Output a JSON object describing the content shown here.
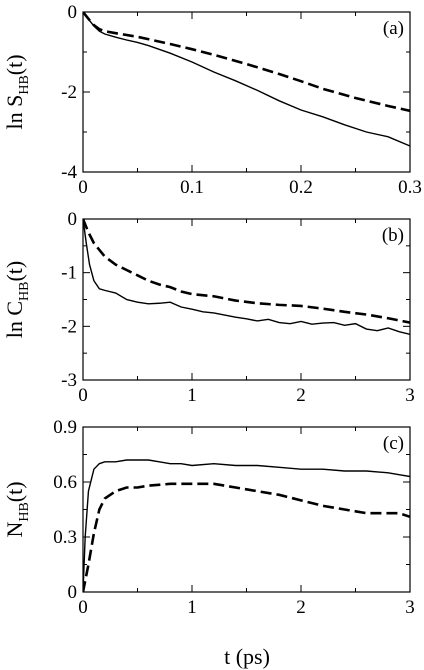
{
  "xlabel": "t (ps)",
  "chart_data": [
    {
      "type": "line",
      "panel_label": "(a)",
      "ylabel_main": "ln S",
      "ylabel_sub": "HB",
      "ylabel_tail": "(t)",
      "xlim": [
        0,
        0.3
      ],
      "ylim": [
        -4,
        0
      ],
      "xticks": [
        0,
        0.1,
        0.2,
        0.3
      ],
      "xtick_labels": [
        "0",
        "0.1",
        "0.2",
        "0.3"
      ],
      "yticks": [
        -4,
        -2,
        0
      ],
      "ytick_labels": [
        "-4",
        "-2",
        "0"
      ],
      "series": [
        {
          "style": "solid",
          "x": [
            0,
            0.005,
            0.01,
            0.015,
            0.02,
            0.03,
            0.04,
            0.05,
            0.06,
            0.08,
            0.1,
            0.12,
            0.14,
            0.16,
            0.18,
            0.2,
            0.22,
            0.24,
            0.26,
            0.28,
            0.3
          ],
          "y": [
            0,
            -0.18,
            -0.35,
            -0.48,
            -0.55,
            -0.63,
            -0.7,
            -0.76,
            -0.84,
            -1.03,
            -1.25,
            -1.5,
            -1.72,
            -1.96,
            -2.22,
            -2.45,
            -2.62,
            -2.82,
            -3.0,
            -3.12,
            -3.35
          ]
        },
        {
          "style": "dashed",
          "x": [
            0,
            0.005,
            0.01,
            0.015,
            0.02,
            0.03,
            0.05,
            0.08,
            0.1,
            0.12,
            0.15,
            0.18,
            0.2,
            0.22,
            0.25,
            0.28,
            0.3
          ],
          "y": [
            0,
            -0.17,
            -0.33,
            -0.43,
            -0.48,
            -0.53,
            -0.62,
            -0.8,
            -0.93,
            -1.07,
            -1.3,
            -1.55,
            -1.73,
            -1.92,
            -2.15,
            -2.35,
            -2.47
          ]
        }
      ]
    },
    {
      "type": "line",
      "panel_label": "(b)",
      "ylabel_main": "ln C",
      "ylabel_sub": "HB",
      "ylabel_tail": "(t)",
      "xlim": [
        0,
        3
      ],
      "ylim": [
        -3,
        0
      ],
      "xticks": [
        0,
        1,
        2,
        3
      ],
      "xtick_labels": [
        "0",
        "1",
        "2",
        "3"
      ],
      "yticks": [
        -3,
        -2,
        -1,
        0
      ],
      "ytick_labels": [
        "-3",
        "-2",
        "-1",
        "0"
      ],
      "series": [
        {
          "style": "solid",
          "x": [
            0,
            0.03,
            0.06,
            0.1,
            0.15,
            0.2,
            0.3,
            0.4,
            0.5,
            0.6,
            0.7,
            0.8,
            0.9,
            1.0,
            1.1,
            1.2,
            1.3,
            1.4,
            1.5,
            1.6,
            1.7,
            1.8,
            1.9,
            2.0,
            2.1,
            2.2,
            2.3,
            2.4,
            2.5,
            2.6,
            2.7,
            2.8,
            2.9,
            3.0
          ],
          "y": [
            0,
            -0.45,
            -0.85,
            -1.15,
            -1.3,
            -1.33,
            -1.38,
            -1.5,
            -1.55,
            -1.58,
            -1.57,
            -1.55,
            -1.64,
            -1.68,
            -1.73,
            -1.75,
            -1.79,
            -1.83,
            -1.86,
            -1.9,
            -1.87,
            -1.93,
            -1.95,
            -1.91,
            -1.96,
            -1.94,
            -1.93,
            -1.98,
            -1.95,
            -2.05,
            -2.08,
            -2.03,
            -2.1,
            -2.15
          ]
        },
        {
          "style": "dashed",
          "x": [
            0,
            0.05,
            0.1,
            0.2,
            0.3,
            0.4,
            0.5,
            0.6,
            0.7,
            0.8,
            0.9,
            1.0,
            1.2,
            1.4,
            1.6,
            1.8,
            2.0,
            2.2,
            2.4,
            2.6,
            2.8,
            3.0
          ],
          "y": [
            0,
            -0.25,
            -0.45,
            -0.7,
            -0.85,
            -0.95,
            -1.05,
            -1.15,
            -1.22,
            -1.27,
            -1.35,
            -1.4,
            -1.44,
            -1.52,
            -1.57,
            -1.6,
            -1.62,
            -1.67,
            -1.73,
            -1.78,
            -1.85,
            -1.93
          ]
        }
      ]
    },
    {
      "type": "line",
      "panel_label": "(c)",
      "ylabel_main": "N",
      "ylabel_sub": "HB",
      "ylabel_tail": "(t)",
      "xlim": [
        0,
        3
      ],
      "ylim": [
        0,
        0.9
      ],
      "xticks": [
        0,
        1,
        2,
        3
      ],
      "xtick_labels": [
        "0",
        "1",
        "2",
        "3"
      ],
      "yticks": [
        0,
        0.3,
        0.6,
        0.9
      ],
      "ytick_labels": [
        "0",
        "0.3",
        "0.6",
        "0.9"
      ],
      "series": [
        {
          "style": "solid",
          "x": [
            0,
            0.02,
            0.05,
            0.1,
            0.15,
            0.2,
            0.3,
            0.4,
            0.5,
            0.6,
            0.7,
            0.8,
            0.9,
            1.0,
            1.2,
            1.4,
            1.6,
            1.8,
            2.0,
            2.2,
            2.4,
            2.6,
            2.8,
            2.9,
            3.0
          ],
          "y": [
            0,
            0.3,
            0.55,
            0.67,
            0.7,
            0.71,
            0.71,
            0.72,
            0.72,
            0.72,
            0.71,
            0.7,
            0.7,
            0.69,
            0.7,
            0.69,
            0.69,
            0.68,
            0.67,
            0.67,
            0.66,
            0.66,
            0.65,
            0.64,
            0.63
          ]
        },
        {
          "style": "dashed",
          "x": [
            0,
            0.05,
            0.1,
            0.15,
            0.2,
            0.3,
            0.4,
            0.5,
            0.6,
            0.8,
            1.0,
            1.2,
            1.4,
            1.6,
            1.8,
            2.0,
            2.2,
            2.4,
            2.6,
            2.8,
            2.9,
            3.0
          ],
          "y": [
            0,
            0.15,
            0.32,
            0.45,
            0.51,
            0.55,
            0.57,
            0.57,
            0.58,
            0.59,
            0.59,
            0.59,
            0.57,
            0.55,
            0.53,
            0.5,
            0.47,
            0.45,
            0.43,
            0.43,
            0.43,
            0.41
          ]
        }
      ]
    }
  ]
}
